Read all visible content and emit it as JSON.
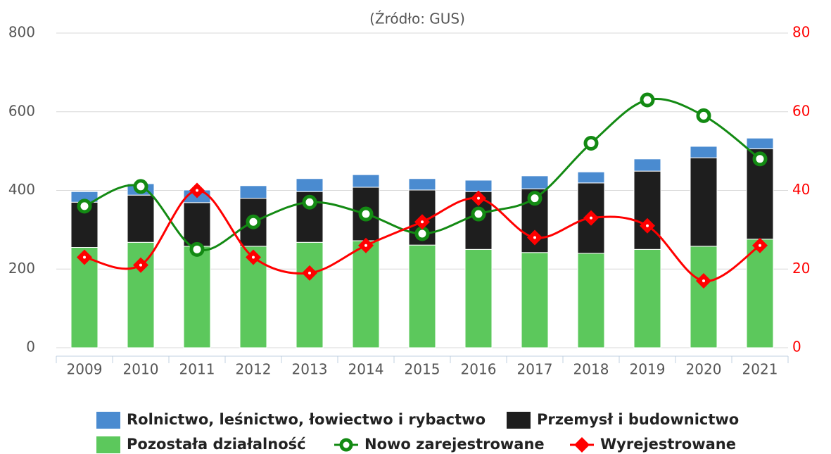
{
  "chart_data": {
    "type": "bar",
    "stacked": true,
    "title": "(Źródło: GUS)",
    "categories": [
      "2009",
      "2010",
      "2011",
      "2012",
      "2013",
      "2014",
      "2015",
      "2016",
      "2017",
      "2018",
      "2019",
      "2020",
      "2021"
    ],
    "series": [
      {
        "name": "Pozostała działalność",
        "type": "bar",
        "color": "#5cc85c",
        "values": [
          255,
          268,
          258,
          258,
          268,
          272,
          261,
          250,
          242,
          240,
          250,
          258,
          276
        ]
      },
      {
        "name": "Przemysł i budownictwo",
        "type": "bar",
        "color": "#1e1e1e",
        "values": [
          115,
          120,
          111,
          122,
          129,
          136,
          140,
          147,
          162,
          179,
          199,
          225,
          230
        ]
      },
      {
        "name": "Rolnictwo, leśnictwo, łowiectwo i rybactwo",
        "type": "bar",
        "color": "#4a8bd0",
        "values": [
          27,
          29,
          32,
          32,
          33,
          32,
          29,
          29,
          33,
          28,
          31,
          29,
          27
        ]
      },
      {
        "name": "Nowo zarejestrowane",
        "type": "line",
        "axis": "y2",
        "color": "#138a13",
        "marker": "circle",
        "values": [
          36,
          41,
          25,
          32,
          37,
          34,
          29,
          34,
          38,
          52,
          63,
          59,
          48
        ]
      },
      {
        "name": "Wyrejestrowane",
        "type": "line",
        "axis": "y2",
        "color": "#ff0000",
        "marker": "diamond",
        "values": [
          23,
          21,
          40,
          23,
          19,
          26,
          32,
          38,
          28,
          33,
          31,
          17,
          26
        ]
      }
    ],
    "ylim": [
      0,
      800
    ],
    "yticks": [
      0,
      200,
      400,
      600,
      800
    ],
    "y2lim": [
      0,
      80
    ],
    "y2ticks": [
      0,
      20,
      40,
      60,
      80
    ],
    "y2color": "#ff0000",
    "grid": true,
    "legend": "bottom"
  }
}
